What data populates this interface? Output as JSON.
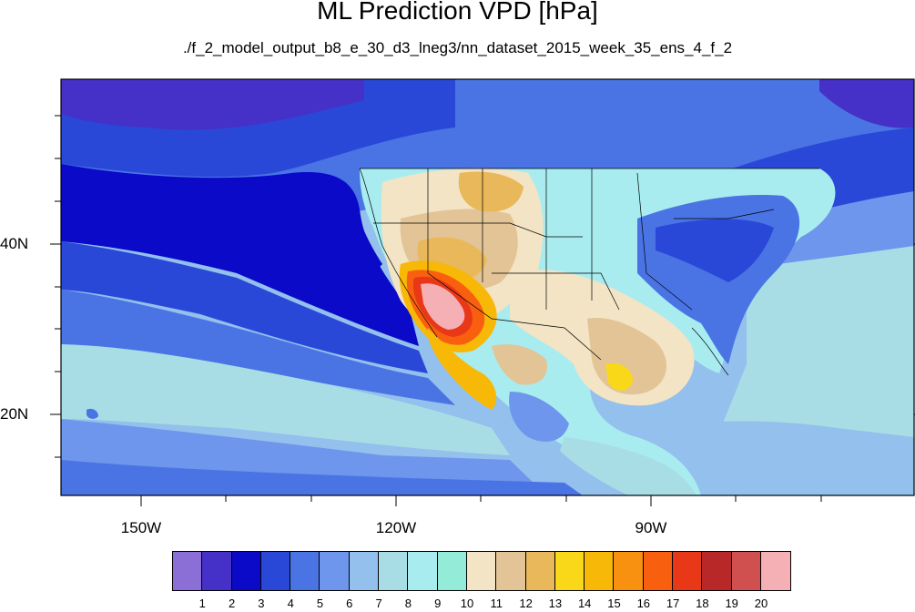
{
  "title": "ML Prediction VPD [hPa]",
  "subtitle": "./f_2_model_output_b8_e_30_d3_lneg3/nn_dataset_2015_week_35_ens_4_f_2",
  "axes": {
    "y_ticks": [
      "40N",
      "20N"
    ],
    "x_ticks": [
      "150W",
      "120W",
      "90W"
    ]
  },
  "colorbar": {
    "labels": [
      "1",
      "2",
      "3",
      "4",
      "5",
      "6",
      "7",
      "8",
      "9",
      "10",
      "11",
      "12",
      "13",
      "14",
      "15",
      "16",
      "17",
      "18",
      "19",
      "20"
    ],
    "colors": [
      "#8c6fd6",
      "#4531c8",
      "#0a0ac8",
      "#2a48d8",
      "#4a74e4",
      "#6e96ec",
      "#93c0ec",
      "#a8dde6",
      "#a8ecf0",
      "#94ecd8",
      "#f2e4c4",
      "#e2c496",
      "#e8b85a",
      "#f8d818",
      "#f8b808",
      "#f89010",
      "#f86010",
      "#e83818",
      "#b82828",
      "#d05050",
      "#f4b0b4"
    ]
  }
}
